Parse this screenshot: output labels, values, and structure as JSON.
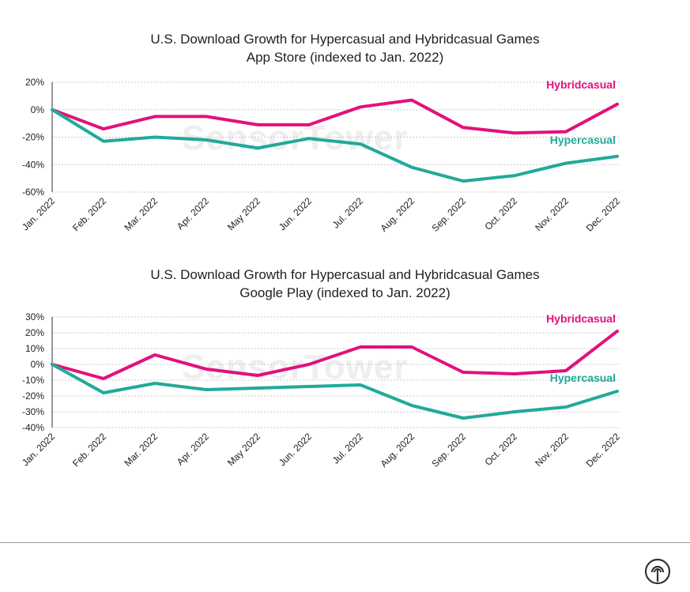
{
  "charts": [
    {
      "title_line1": "U.S. Download Growth for Hypercasual and Hybridcasual Games",
      "title_line2": "App Store (indexed to Jan. 2022)",
      "watermark": "SensorTower"
    },
    {
      "title_line1": "U.S. Download Growth for Hypercasual and Hybridcasual Games",
      "title_line2": "Google Play (indexed to Jan. 2022)",
      "watermark": "SensorTower"
    }
  ],
  "colors": {
    "hybridcasual": "#e2117b",
    "hypercasual": "#22a99a",
    "grid": "#c8c8c8",
    "axis": "#333333"
  },
  "icons": {
    "brand": "sensor-tower-logo-icon"
  },
  "chart_data": [
    {
      "type": "line",
      "title": "U.S. Download Growth for Hypercasual and Hybridcasual Games App Store (indexed to Jan. 2022)",
      "categories": [
        "Jan. 2022",
        "Feb. 2022",
        "Mar. 2022",
        "Apr. 2022",
        "May 2022",
        "Jun. 2022",
        "Jul. 2022",
        "Aug. 2022",
        "Sep. 2022",
        "Oct. 2022",
        "Nov. 2022",
        "Dec. 2022"
      ],
      "ylim": [
        -60,
        20
      ],
      "yticks": [
        20,
        0,
        -20,
        -40,
        -60
      ],
      "ytick_labels": [
        "20%",
        "0%",
        "-20%",
        "-40%",
        "-60%"
      ],
      "grid": true,
      "series": [
        {
          "name": "Hybridcasual",
          "values": [
            0,
            -14,
            -5,
            -5,
            -11,
            -11,
            2,
            7,
            -13,
            -17,
            -16,
            4
          ]
        },
        {
          "name": "Hypercasual",
          "values": [
            0,
            -23,
            -20,
            -22,
            -28,
            -21,
            -25,
            -42,
            -52,
            -48,
            -39,
            -34
          ]
        }
      ]
    },
    {
      "type": "line",
      "title": "U.S. Download Growth for Hypercasual and Hybridcasual Games Google Play (indexed to Jan. 2022)",
      "categories": [
        "Jan. 2022",
        "Feb. 2022",
        "Mar. 2022",
        "Apr. 2022",
        "May 2022",
        "Jun. 2022",
        "Jul. 2022",
        "Aug. 2022",
        "Sep. 2022",
        "Oct. 2022",
        "Nov. 2022",
        "Dec. 2022"
      ],
      "ylim": [
        -40,
        30
      ],
      "yticks": [
        30,
        20,
        10,
        0,
        -10,
        -20,
        -30,
        -40
      ],
      "ytick_labels": [
        "30%",
        "20%",
        "10%",
        "0%",
        "-10%",
        "-20%",
        "-30%",
        "-40%"
      ],
      "grid": true,
      "series": [
        {
          "name": "Hybridcasual",
          "values": [
            0,
            -9,
            6,
            -3,
            -7,
            0,
            11,
            11,
            -5,
            -6,
            -4,
            21
          ]
        },
        {
          "name": "Hypercasual",
          "values": [
            0,
            -18,
            -12,
            -16,
            -15,
            -14,
            -13,
            -26,
            -34,
            -30,
            -27,
            -17
          ]
        }
      ]
    }
  ]
}
